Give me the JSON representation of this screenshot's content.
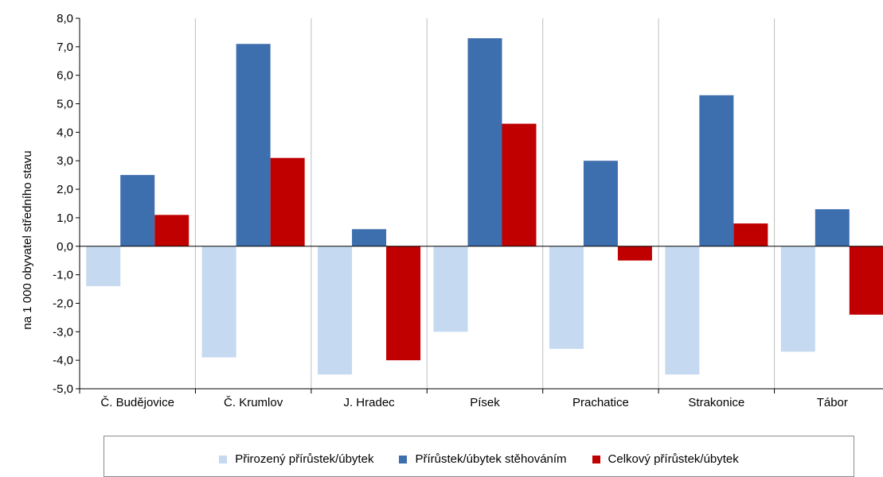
{
  "chart_data": {
    "type": "bar",
    "ylabel": "na 1 000 obyvatel středního stavu",
    "ylim": [
      -5,
      8
    ],
    "ytick_step": 1,
    "ytick_labels": [
      "-5,0",
      "-4,0",
      "-3,0",
      "-2,0",
      "-1,0",
      "0,0",
      "1,0",
      "2,0",
      "3,0",
      "4,0",
      "5,0",
      "6,0",
      "7,0",
      "8,0"
    ],
    "categories": [
      "Č. Budějovice",
      "Č. Krumlov",
      "J. Hradec",
      "Písek",
      "Prachatice",
      "Strakonice",
      "Tábor"
    ],
    "series": [
      {
        "name": "Přirozený přírůstek/úbytek",
        "color": "#c5d9f1",
        "values": [
          -1.4,
          -3.9,
          -4.5,
          -3.0,
          -3.6,
          -4.5,
          -3.7
        ]
      },
      {
        "name": "Přírůstek/úbytek stěhováním",
        "color": "#3d6ead",
        "values": [
          2.5,
          7.1,
          0.6,
          7.3,
          3.0,
          5.3,
          1.3
        ]
      },
      {
        "name": "Celkový přírůstek/úbytek",
        "color": "#c00000",
        "values": [
          1.1,
          3.1,
          -4.0,
          4.3,
          -0.5,
          0.8,
          -2.4
        ]
      }
    ],
    "grid": "vertical category separators",
    "legend_position": "bottom"
  }
}
